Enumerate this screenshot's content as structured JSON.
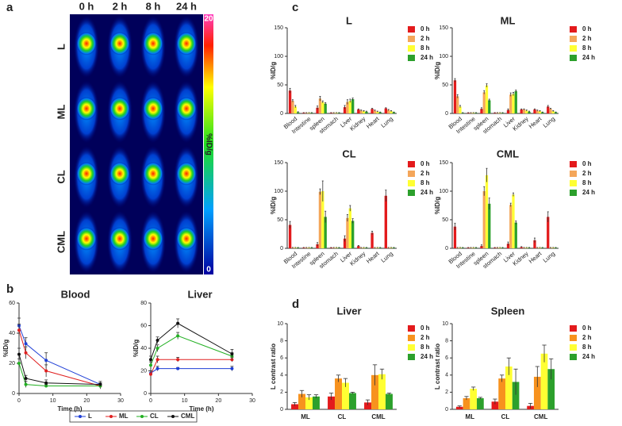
{
  "panel_labels": [
    "a",
    "b",
    "c",
    "d"
  ],
  "panel_a": {
    "columns": [
      "0 h",
      "2 h",
      "8 h",
      "24 h"
    ],
    "rows": [
      "L",
      "ML",
      "CL",
      "CML"
    ],
    "colorbar": {
      "max": 20,
      "min": 0,
      "label": "%ID/g"
    }
  },
  "chart_data": [
    {
      "type": "line",
      "title": "Blood",
      "xlabel": "Time (h)",
      "ylabel": "%ID/g",
      "x": [
        0,
        2,
        8,
        24
      ],
      "xlim": [
        0,
        30
      ],
      "xticks": [
        0,
        10,
        20,
        30
      ],
      "ylim": [
        0,
        60
      ],
      "yticks": [
        0,
        20,
        40,
        60
      ],
      "series": [
        {
          "name": "L",
          "color": "#1f3fd6",
          "values": [
            45,
            33,
            22,
            6
          ],
          "errors": [
            5,
            4,
            5,
            2
          ]
        },
        {
          "name": "ML",
          "color": "#e02020",
          "values": [
            42,
            27,
            15,
            5
          ],
          "errors": [
            4,
            4,
            4,
            2
          ]
        },
        {
          "name": "CL",
          "color": "#22b022",
          "values": [
            20,
            6,
            5,
            5
          ],
          "errors": [
            3,
            2,
            1,
            1
          ]
        },
        {
          "name": "CML",
          "color": "#111111",
          "values": [
            26,
            10,
            7,
            6
          ],
          "errors": [
            4,
            2,
            2,
            1
          ]
        }
      ]
    },
    {
      "type": "line",
      "title": "Liver",
      "xlabel": "Time (h)",
      "ylabel": "%ID/g",
      "x": [
        0,
        2,
        8,
        24
      ],
      "xlim": [
        0,
        30
      ],
      "xticks": [
        0,
        10,
        20,
        30
      ],
      "ylim": [
        0,
        80
      ],
      "yticks": [
        0,
        20,
        40,
        60,
        80
      ],
      "series": [
        {
          "color": "#1f3fd6",
          "values": [
            18,
            22,
            22,
            22
          ],
          "errors": [
            2,
            2,
            1,
            2
          ]
        },
        {
          "color": "#e02020",
          "values": [
            17,
            30,
            30,
            30
          ],
          "errors": [
            3,
            3,
            2,
            2
          ]
        },
        {
          "color": "#22b022",
          "values": [
            25,
            40,
            51,
            33
          ],
          "errors": [
            3,
            3,
            3,
            3
          ]
        },
        {
          "color": "#111111",
          "values": [
            30,
            47,
            62,
            35
          ],
          "errors": [
            3,
            3,
            4,
            4
          ]
        }
      ]
    },
    {
      "type": "bar",
      "title": "L",
      "ylabel": "%ID/g",
      "categories": [
        "Blood",
        "Intestine",
        "spleen",
        "stomach",
        "Liver",
        "Kidney",
        "Heart",
        "Lung"
      ],
      "ylim": [
        0,
        150
      ],
      "yticks": [
        0,
        50,
        100,
        150
      ],
      "series": [
        {
          "name": "0 h",
          "color": "#e31a1c",
          "values": [
            40,
            1,
            10,
            1,
            11,
            7,
            8,
            9
          ],
          "errors": [
            4,
            0.5,
            3,
            0.5,
            3,
            1,
            1,
            1
          ]
        },
        {
          "name": "2 h",
          "color": "#f4a65a",
          "values": [
            22,
            1,
            26,
            1,
            20,
            5,
            5,
            6
          ],
          "errors": [
            2,
            0.5,
            4,
            0.5,
            4,
            1,
            1,
            1
          ]
        },
        {
          "name": "8 h",
          "color": "#ffff33",
          "values": [
            12,
            1,
            20,
            1,
            22,
            4,
            3,
            4
          ],
          "errors": [
            2,
            0.5,
            2,
            0.5,
            3,
            1,
            1,
            1
          ]
        },
        {
          "name": "24 h",
          "color": "#2ca02c",
          "values": [
            2,
            1,
            17,
            1,
            25,
            3,
            2,
            2
          ],
          "errors": [
            1,
            0.5,
            2,
            0.5,
            2,
            1,
            0.5,
            0.5
          ]
        }
      ]
    },
    {
      "type": "bar",
      "title": "ML",
      "ylabel": "%ID/g",
      "categories": [
        "Blood",
        "Intestine",
        "spleen",
        "stomach",
        "Liver",
        "Kidney",
        "Heart",
        "Lung"
      ],
      "ylim": [
        0,
        150
      ],
      "yticks": [
        0,
        50,
        100,
        150
      ],
      "series": [
        {
          "name": "0 h",
          "color": "#e31a1c",
          "values": [
            58,
            1,
            8,
            1,
            6,
            7,
            7,
            12
          ],
          "errors": [
            3,
            0.5,
            2,
            0.5,
            2,
            1,
            1,
            2
          ]
        },
        {
          "name": "2 h",
          "color": "#f4a65a",
          "values": [
            30,
            1,
            37,
            1,
            33,
            7,
            5,
            8
          ],
          "errors": [
            3,
            0.5,
            3,
            0.5,
            3,
            1,
            1,
            1
          ]
        },
        {
          "name": "8 h",
          "color": "#ffff33",
          "values": [
            12,
            1,
            49,
            1,
            34,
            5,
            4,
            4
          ],
          "errors": [
            2,
            0.5,
            3,
            0.5,
            3,
            1,
            1,
            1
          ]
        },
        {
          "name": "24 h",
          "color": "#2ca02c",
          "values": [
            1,
            1,
            23,
            1,
            39,
            3,
            2,
            2
          ],
          "errors": [
            0.5,
            0.5,
            2,
            0.5,
            2,
            1,
            0.5,
            0.5
          ]
        }
      ]
    },
    {
      "type": "bar",
      "title": "CL",
      "ylabel": "%ID/g",
      "categories": [
        "Blood",
        "Intestine",
        "spleen",
        "stomach",
        "Liver",
        "Kidney",
        "Heart",
        "Lung"
      ],
      "ylim": [
        0,
        150
      ],
      "yticks": [
        0,
        50,
        100,
        150
      ],
      "series": [
        {
          "name": "0 h",
          "color": "#e31a1c",
          "values": [
            41,
            1,
            7,
            1,
            17,
            4,
            27,
            92
          ],
          "errors": [
            6,
            0.5,
            3,
            0.5,
            5,
            1,
            3,
            10
          ]
        },
        {
          "name": "2 h",
          "color": "#f4a65a",
          "values": [
            1,
            1,
            99,
            1,
            53,
            1,
            1,
            1
          ],
          "errors": [
            0.5,
            0.5,
            5,
            0.5,
            6,
            0.5,
            0.5,
            0.5
          ]
        },
        {
          "name": "8 h",
          "color": "#ffff33",
          "values": [
            1,
            1,
            100,
            1,
            70,
            1,
            1,
            1
          ],
          "errors": [
            0.5,
            0.5,
            18,
            0.5,
            5,
            0.5,
            0.5,
            0.5
          ]
        },
        {
          "name": "24 h",
          "color": "#2ca02c",
          "values": [
            1,
            1,
            55,
            1,
            48,
            1,
            1,
            1
          ],
          "errors": [
            0.5,
            0.5,
            10,
            0.5,
            4,
            0.5,
            0.5,
            0.5
          ]
        }
      ]
    },
    {
      "type": "bar",
      "title": "CML",
      "ylabel": "%ID/g",
      "categories": [
        "Blood",
        "Intestine",
        "spleen",
        "stomach",
        "Liver",
        "Kidney",
        "Heart",
        "Lung"
      ],
      "ylim": [
        0,
        150
      ],
      "yticks": [
        0,
        50,
        100,
        150
      ],
      "series": [
        {
          "name": "0 h",
          "color": "#e31a1c",
          "values": [
            38,
            1,
            4,
            1,
            8,
            2,
            14,
            55
          ],
          "errors": [
            6,
            0.5,
            2,
            0.5,
            3,
            1,
            4,
            9
          ]
        },
        {
          "name": "2 h",
          "color": "#f4a65a",
          "values": [
            1,
            1,
            100,
            1,
            76,
            1,
            1,
            1
          ],
          "errors": [
            0.5,
            0.5,
            8,
            0.5,
            3,
            0.5,
            0.5,
            0.5
          ]
        },
        {
          "name": "8 h",
          "color": "#ffff33",
          "values": [
            1,
            1,
            128,
            1,
            94,
            1,
            1,
            1
          ],
          "errors": [
            0.5,
            0.5,
            12,
            0.5,
            3,
            0.5,
            0.5,
            0.5
          ]
        },
        {
          "name": "24 h",
          "color": "#2ca02c",
          "values": [
            1,
            1,
            78,
            1,
            45,
            1,
            1,
            1
          ],
          "errors": [
            0.5,
            0.5,
            10,
            0.5,
            3,
            0.5,
            0.5,
            0.5
          ]
        }
      ]
    },
    {
      "type": "bar",
      "title": "Liver",
      "ylabel": "L contrast ratio",
      "categories": [
        "ML",
        "CL",
        "CML"
      ],
      "ylim": [
        0,
        10
      ],
      "yticks": [
        0,
        2,
        4,
        6,
        8,
        10
      ],
      "series": [
        {
          "name": "0 h",
          "color": "#e31a1c",
          "values": [
            0.6,
            1.5,
            0.8
          ],
          "errors": [
            0.2,
            0.4,
            0.3
          ]
        },
        {
          "name": "2 h",
          "color": "#f7921e",
          "values": [
            1.8,
            3.6,
            4.0
          ],
          "errors": [
            0.4,
            0.4,
            1.2
          ]
        },
        {
          "name": "8 h",
          "color": "#ffff33",
          "values": [
            1.4,
            3.1,
            4.1
          ],
          "errors": [
            0.3,
            0.5,
            0.6
          ]
        },
        {
          "name": "24 h",
          "color": "#2ca02c",
          "values": [
            1.5,
            1.9,
            1.8
          ],
          "errors": [
            0.2,
            0.1,
            0.1
          ]
        }
      ]
    },
    {
      "type": "bar",
      "title": "Spleen",
      "ylabel": "L contrast ratio",
      "categories": [
        "ML",
        "CL",
        "CML"
      ],
      "ylim": [
        0,
        10
      ],
      "yticks": [
        0,
        2,
        4,
        6,
        8,
        10
      ],
      "series": [
        {
          "name": "0 h",
          "color": "#e31a1c",
          "values": [
            0.3,
            0.9,
            0.4
          ],
          "errors": [
            0.1,
            0.3,
            0.3
          ]
        },
        {
          "name": "2 h",
          "color": "#f7921e",
          "values": [
            1.3,
            3.6,
            3.8
          ],
          "errors": [
            0.2,
            0.4,
            1.2
          ]
        },
        {
          "name": "8 h",
          "color": "#ffff33",
          "values": [
            2.4,
            5.0,
            6.5
          ],
          "errors": [
            0.2,
            1.0,
            1.0
          ]
        },
        {
          "name": "24 h",
          "color": "#2ca02c",
          "values": [
            1.3,
            3.2,
            4.7
          ],
          "errors": [
            0.1,
            1.5,
            1.2
          ]
        }
      ]
    }
  ]
}
